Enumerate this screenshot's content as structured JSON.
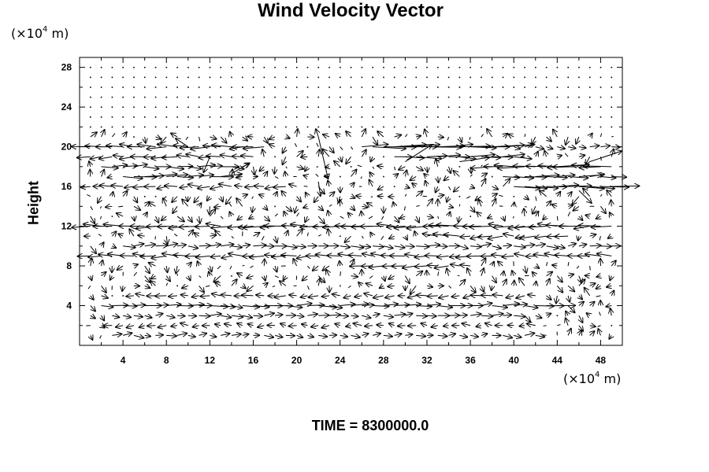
{
  "chart_data": {
    "type": "vector_field",
    "title": "Wind Velocity Vector",
    "ylabel": "Height",
    "x_unit": {
      "prefix": "(×10",
      "exp": "4",
      "suffix": " m)"
    },
    "y_unit": {
      "prefix": "(×10",
      "exp": "4",
      "suffix": " m)"
    },
    "xlim": [
      0,
      50
    ],
    "ylim": [
      0,
      29
    ],
    "xticks": [
      4,
      8,
      12,
      16,
      20,
      24,
      28,
      32,
      36,
      40,
      44,
      48
    ],
    "yticks": [
      4,
      8,
      12,
      16,
      20,
      24,
      28
    ],
    "grid": false,
    "layers": [
      {
        "y": 20,
        "segments": [
          {
            "x0": 1,
            "x1": 17,
            "u": -1.6
          },
          {
            "x0": 26,
            "x1": 39,
            "u": 2.6
          },
          {
            "x0": 40,
            "x1": 50,
            "u": 0.8
          }
        ]
      },
      {
        "y": 19,
        "segments": [
          {
            "x0": 1,
            "x1": 16,
            "u": -1.2
          },
          {
            "x0": 29,
            "x1": 40,
            "u": 2.0
          }
        ]
      },
      {
        "y": 18,
        "segments": [
          {
            "x0": 2,
            "x1": 14,
            "u": 1.4
          },
          {
            "x0": 38,
            "x1": 50,
            "u": -2.2
          }
        ]
      },
      {
        "y": 17,
        "segments": [
          {
            "x0": 4,
            "x1": 13,
            "u": 1.8
          },
          {
            "x0": 39,
            "x1": 50,
            "u": 1.8
          }
        ]
      },
      {
        "y": 16,
        "segments": [
          {
            "x0": 1,
            "x1": 20,
            "u": -1.0
          },
          {
            "x0": 40,
            "x1": 50,
            "u": 2.2
          }
        ]
      },
      {
        "y": 12,
        "segments": [
          {
            "x0": 0,
            "x1": 50,
            "u": -1.8
          }
        ]
      },
      {
        "y": 11,
        "segments": [
          {
            "x0": 33,
            "x1": 45,
            "u": -1.2
          }
        ]
      },
      {
        "y": 10,
        "segments": [
          {
            "x0": 4,
            "x1": 50,
            "u": 1.0
          }
        ]
      },
      {
        "y": 9,
        "segments": [
          {
            "x0": 1,
            "x1": 50,
            "u": -1.2
          }
        ]
      },
      {
        "y": 8,
        "segments": [
          {
            "x0": 26,
            "x1": 36,
            "u": -1.2
          }
        ]
      },
      {
        "y": 5,
        "segments": [
          {
            "x0": 5,
            "x1": 42,
            "u": -0.9
          }
        ]
      },
      {
        "y": 4,
        "segments": [
          {
            "x0": 2,
            "x1": 44,
            "u": 1.4
          }
        ]
      },
      {
        "y": 3,
        "segments": [
          {
            "x0": 3,
            "x1": 40,
            "u": 0.9
          }
        ]
      },
      {
        "y": 2,
        "segments": [
          {
            "x0": 3,
            "x1": 42,
            "u": -0.7
          }
        ]
      },
      {
        "y": 1,
        "segments": [
          {
            "x0": 3,
            "x1": 42,
            "u": 0.8
          }
        ]
      }
    ],
    "gusts": [
      {
        "x": 22,
        "y": 21,
        "u": 0.9,
        "v": -3.9
      },
      {
        "x": 12,
        "y": 19,
        "u": -0.6,
        "v": -1.5
      },
      {
        "x": 30,
        "y": 18.5,
        "u": 2.5,
        "v": 1.6
      },
      {
        "x": 35,
        "y": 18.5,
        "u": 2.8,
        "v": 0.4
      },
      {
        "x": 14,
        "y": 17.3,
        "u": 1.7,
        "v": 1.0
      },
      {
        "x": 10,
        "y": 20,
        "u": -1.2,
        "v": 0.8
      },
      {
        "x": 44,
        "y": 18,
        "u": 3.0,
        "v": 0.2
      },
      {
        "x": 47,
        "y": 18.5,
        "u": 3.0,
        "v": 1.0
      },
      {
        "x": 46,
        "y": 15.6,
        "u": 1.2,
        "v": -1.2
      },
      {
        "x": 22,
        "y": 16.5,
        "u": 0.2,
        "v": -1.4
      }
    ],
    "annotation": "TIME = 8300000.0"
  }
}
